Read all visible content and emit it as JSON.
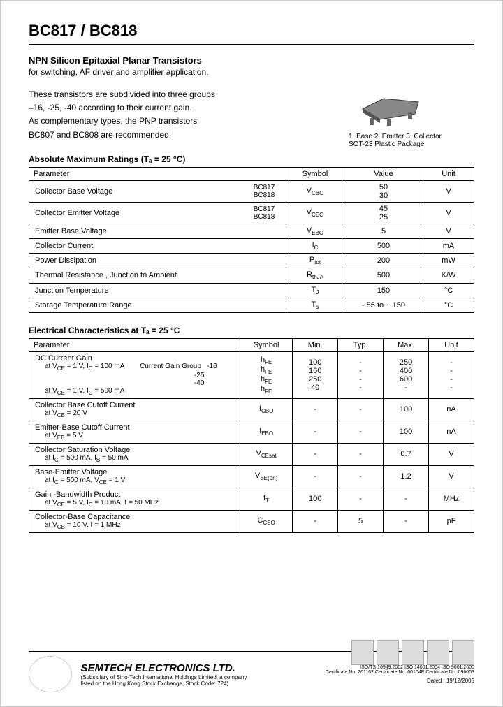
{
  "header": {
    "title": "BC817 / BC818",
    "subtitle": "NPN Silicon Epitaxial Planar Transistors",
    "application": "for switching, AF driver and amplifier application,"
  },
  "intro": {
    "l1": "These transistors are subdivided into three groups",
    "l2": "–16, -25, -40 according to their current gain.",
    "l3": "As complementary types, the PNP transistors",
    "l4": "BC807 and BC808 are recommended."
  },
  "package": {
    "pins": "1. Base   2. Emitter   3. Collector",
    "name": "SOT-23 Plastic Package"
  },
  "amr": {
    "title": "Absolute Maximum Ratings (Tₐ = 25 °C)",
    "head": {
      "p": "Parameter",
      "s": "Symbol",
      "v": "Value",
      "u": "Unit"
    },
    "rows": [
      {
        "p": "Collector Base Voltage",
        "m": "BC817\nBC818",
        "s": "V_CBO",
        "v": "50\n30",
        "u": "V"
      },
      {
        "p": "Collector Emitter Voltage",
        "m": "BC817\nBC818",
        "s": "V_CEO",
        "v": "45\n25",
        "u": "V"
      },
      {
        "p": "Emitter Base Voltage",
        "m": "",
        "s": "V_EBO",
        "v": "5",
        "u": "V"
      },
      {
        "p": "Collector Current",
        "m": "",
        "s": "I_C",
        "v": "500",
        "u": "mA"
      },
      {
        "p": "Power Dissipation",
        "m": "",
        "s": "P_tot",
        "v": "200",
        "u": "mW"
      },
      {
        "p": "Thermal Resistance , Junction to Ambient",
        "m": "",
        "s": "R_thJA",
        "v": "500",
        "u": "K/W"
      },
      {
        "p": "Junction Temperature",
        "m": "",
        "s": "T_J",
        "v": "150",
        "u": "°C"
      },
      {
        "p": "Storage Temperature Range",
        "m": "",
        "s": "T_s",
        "v": "- 55 to + 150",
        "u": "°C"
      }
    ]
  },
  "ec": {
    "title": "Electrical Characteristics at Tₐ = 25 °C",
    "head": {
      "p": "Parameter",
      "s": "Symbol",
      "mn": "Min.",
      "ty": "Typ.",
      "mx": "Max.",
      "u": "Unit"
    },
    "rows": [
      {
        "p": "DC Current Gain",
        "c": "at V_CE = 1 V, I_C = 100 mA        Current Gain Group   -16\n                                                                             -25\n                                                                             -40\nat V_CE = 1 V, I_C = 500 mA",
        "s": "h_FE\nh_FE\nh_FE\nh_FE",
        "mn": "100\n160\n250\n40",
        "ty": "-\n-\n-\n-",
        "mx": "250\n400\n600\n-",
        "u": "-\n-\n-\n-"
      },
      {
        "p": "Collector Base Cutoff Current",
        "c": "at V_CB = 20 V",
        "s": "I_CBO",
        "mn": "-",
        "ty": "-",
        "mx": "100",
        "u": "nA"
      },
      {
        "p": "Emitter-Base Cutoff Current",
        "c": "at V_EB = 5 V",
        "s": "I_EBO",
        "mn": "-",
        "ty": "-",
        "mx": "100",
        "u": "nA"
      },
      {
        "p": "Collector Saturation Voltage",
        "c": "at I_C = 500 mA, I_B = 50 mA",
        "s": "V_CEsat",
        "mn": "-",
        "ty": "-",
        "mx": "0.7",
        "u": "V"
      },
      {
        "p": "Base-Emitter Voltage",
        "c": "at I_C = 500 mA, V_CE = 1 V",
        "s": "V_BE(on)",
        "mn": "-",
        "ty": "-",
        "mx": "1.2",
        "u": "V"
      },
      {
        "p": "Gain -Bandwidth Product",
        "c": "at V_CE = 5 V, I_C = 10 mA, f = 50 MHz",
        "s": "f_T",
        "mn": "100",
        "ty": "-",
        "mx": "-",
        "u": "MHz"
      },
      {
        "p": "Collector-Base Capacitance",
        "c": "at V_CB = 10 V, f = 1 MHz",
        "s": "C_CBO",
        "mn": "-",
        "ty": "5",
        "mx": "-",
        "u": "pF"
      }
    ]
  },
  "footer": {
    "company": "SEMTECH ELECTRONICS LTD.",
    "sub": "(Subsidiary of Sino-Tech International Holdings Limited, a company\nlisted on the Hong Kong Stock Exchange, Stock Code: 724)",
    "certs": "ISO/TS 16949:2002        ISO 14001:2004     ISO 9001:2000\nCertificate No. 261102    Certificate No. 00104E   Certificate No. 096003",
    "dated": "Dated : 19/12/2005"
  }
}
